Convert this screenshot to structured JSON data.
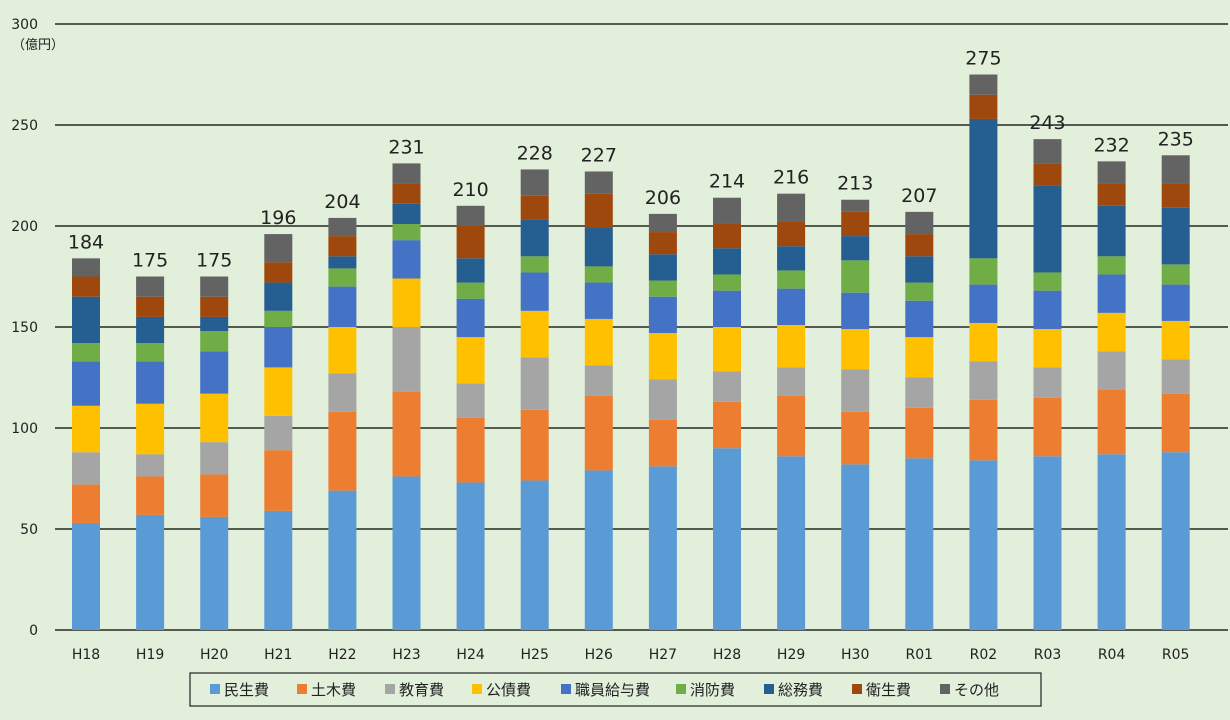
{
  "chart_data": {
    "type": "bar",
    "stacked": true,
    "unit": "（億円）",
    "ylim": [
      0,
      300
    ],
    "yticks": [
      0,
      50,
      100,
      150,
      200,
      250,
      300
    ],
    "grid": true,
    "legend_position": "bottom",
    "categories": [
      "H18",
      "H19",
      "H20",
      "H21",
      "H22",
      "H23",
      "H24",
      "H25",
      "H26",
      "H27",
      "H28",
      "H29",
      "H30",
      "R01",
      "R02",
      "R03",
      "R04",
      "R05"
    ],
    "totals": [
      184,
      175,
      175,
      196,
      204,
      231,
      210,
      228,
      227,
      206,
      214,
      216,
      213,
      207,
      275,
      243,
      232,
      235
    ],
    "series": [
      {
        "name": "民生費",
        "color": "#5b9bd5",
        "values": [
          53,
          57,
          56,
          59,
          69,
          76,
          73,
          74,
          79,
          81,
          90,
          86,
          82,
          85,
          84,
          86,
          87,
          88
        ]
      },
      {
        "name": "土木費",
        "color": "#ed7d31",
        "values": [
          19,
          19,
          21,
          30,
          39,
          42,
          32,
          35,
          37,
          23,
          23,
          30,
          26,
          25,
          30,
          29,
          32,
          29
        ]
      },
      {
        "name": "教育費",
        "color": "#a5a5a5",
        "values": [
          16,
          11,
          16,
          17,
          19,
          32,
          17,
          26,
          15,
          20,
          15,
          14,
          21,
          15,
          19,
          15,
          19,
          17
        ]
      },
      {
        "name": "公債費",
        "color": "#ffc000",
        "values": [
          23,
          25,
          24,
          24,
          23,
          24,
          23,
          23,
          23,
          23,
          22,
          21,
          20,
          20,
          19,
          19,
          19,
          19
        ]
      },
      {
        "name": "職員給与費",
        "color": "#4472c4",
        "values": [
          22,
          21,
          21,
          20,
          20,
          19,
          19,
          19,
          18,
          18,
          18,
          18,
          18,
          18,
          19,
          19,
          19,
          18
        ]
      },
      {
        "name": "消防費",
        "color": "#70ad47",
        "values": [
          9,
          9,
          10,
          8,
          9,
          8,
          8,
          8,
          8,
          8,
          8,
          9,
          16,
          9,
          13,
          9,
          9,
          10
        ]
      },
      {
        "name": "総務費",
        "color": "#255e91",
        "values": [
          23,
          13,
          7,
          14,
          6,
          10,
          12,
          18,
          19,
          13,
          13,
          12,
          12,
          13,
          69,
          43,
          25,
          28
        ]
      },
      {
        "name": "衛生費",
        "color": "#9e480e",
        "values": [
          10,
          10,
          10,
          10,
          10,
          10,
          16,
          12,
          17,
          11,
          12,
          12,
          12,
          11,
          12,
          11,
          11,
          12
        ]
      },
      {
        "name": "その他",
        "color": "#636363",
        "values": [
          9,
          10,
          10,
          14,
          9,
          10,
          10,
          13,
          11,
          9,
          13,
          14,
          6,
          11,
          10,
          12,
          11,
          14
        ]
      }
    ]
  }
}
